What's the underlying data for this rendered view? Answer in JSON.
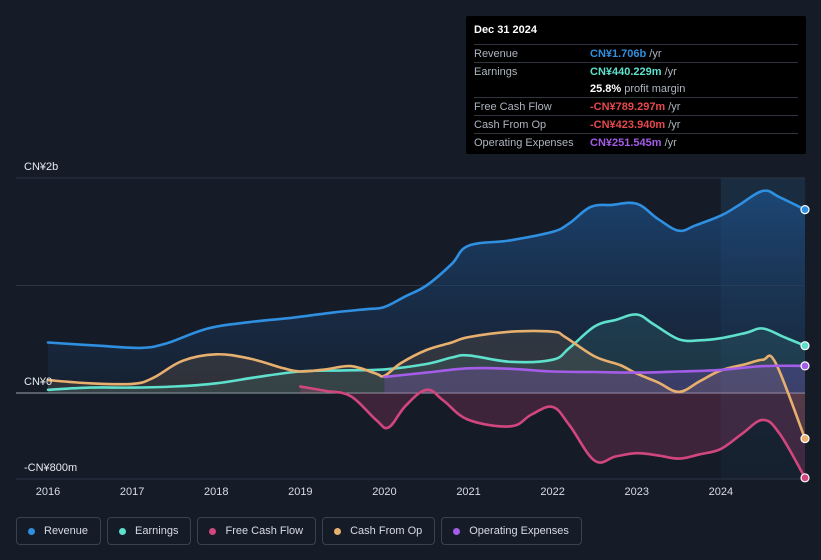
{
  "tooltip": {
    "date": "Dec 31 2024",
    "rows": [
      {
        "label": "Revenue",
        "value": "CN¥1.706b",
        "unit": "/yr",
        "color": "#2f8fe0"
      },
      {
        "label": "Earnings",
        "value": "CN¥440.229m",
        "unit": "/yr",
        "color": "#5ee0cc"
      },
      {
        "label": "",
        "value": "25.8%",
        "unit": "profit margin",
        "color": "#ffffff"
      },
      {
        "label": "Free Cash Flow",
        "value": "-CN¥789.297m",
        "unit": "/yr",
        "color": "#e5484d"
      },
      {
        "label": "Cash From Op",
        "value": "-CN¥423.940m",
        "unit": "/yr",
        "color": "#e5484d"
      },
      {
        "label": "Operating Expenses",
        "value": "CN¥251.545m",
        "unit": "/yr",
        "color": "#a45de8"
      }
    ]
  },
  "chart_data": {
    "type": "area",
    "ylim": [
      -800,
      2000
    ],
    "y_unit": "CN¥ millions",
    "y_tick_labels": [
      {
        "value": 2000,
        "label": "CN¥2b"
      },
      {
        "value": 0,
        "label": "CN¥0"
      },
      {
        "value": -800,
        "label": "-CN¥800m"
      }
    ],
    "x_ticks": [
      "2016",
      "2017",
      "2018",
      "2019",
      "2020",
      "2021",
      "2022",
      "2023",
      "2024"
    ],
    "xlim": [
      2015.5,
      2025.0
    ],
    "highlight_from": 2024.0,
    "series": [
      {
        "name": "Revenue",
        "color": "#2f8fe0",
        "fill": true,
        "points": [
          [
            2016.0,
            470
          ],
          [
            2016.6,
            440
          ],
          [
            2017.1,
            420
          ],
          [
            2017.4,
            460
          ],
          [
            2017.9,
            600
          ],
          [
            2018.4,
            660
          ],
          [
            2018.9,
            700
          ],
          [
            2019.4,
            750
          ],
          [
            2019.8,
            780
          ],
          [
            2020.0,
            800
          ],
          [
            2020.25,
            900
          ],
          [
            2020.5,
            1000
          ],
          [
            2020.8,
            1200
          ],
          [
            2021.0,
            1370
          ],
          [
            2021.5,
            1420
          ],
          [
            2022.0,
            1500
          ],
          [
            2022.2,
            1580
          ],
          [
            2022.45,
            1730
          ],
          [
            2022.7,
            1750
          ],
          [
            2023.0,
            1760
          ],
          [
            2023.25,
            1620
          ],
          [
            2023.5,
            1510
          ],
          [
            2023.7,
            1560
          ],
          [
            2024.0,
            1650
          ],
          [
            2024.2,
            1740
          ],
          [
            2024.5,
            1880
          ],
          [
            2024.7,
            1820
          ],
          [
            2025.0,
            1706
          ]
        ]
      },
      {
        "name": "Earnings",
        "color": "#5ee0cc",
        "fill": true,
        "points": [
          [
            2016.0,
            30
          ],
          [
            2016.5,
            50
          ],
          [
            2017.0,
            50
          ],
          [
            2017.5,
            60
          ],
          [
            2018.0,
            90
          ],
          [
            2018.5,
            150
          ],
          [
            2019.0,
            200
          ],
          [
            2019.5,
            210
          ],
          [
            2020.0,
            220
          ],
          [
            2020.5,
            270
          ],
          [
            2020.8,
            330
          ],
          [
            2021.0,
            350
          ],
          [
            2021.5,
            290
          ],
          [
            2022.0,
            310
          ],
          [
            2022.2,
            420
          ],
          [
            2022.5,
            620
          ],
          [
            2022.75,
            680
          ],
          [
            2023.0,
            730
          ],
          [
            2023.2,
            640
          ],
          [
            2023.5,
            500
          ],
          [
            2023.75,
            490
          ],
          [
            2024.0,
            510
          ],
          [
            2024.3,
            560
          ],
          [
            2024.5,
            600
          ],
          [
            2024.75,
            520
          ],
          [
            2025.0,
            440
          ]
        ]
      },
      {
        "name": "Free Cash Flow",
        "color": "#d2467e",
        "fill": true,
        "points": [
          [
            2019.0,
            60
          ],
          [
            2019.3,
            20
          ],
          [
            2019.6,
            -30
          ],
          [
            2019.9,
            -250
          ],
          [
            2020.05,
            -320
          ],
          [
            2020.25,
            -120
          ],
          [
            2020.5,
            30
          ],
          [
            2020.7,
            -70
          ],
          [
            2021.0,
            -250
          ],
          [
            2021.5,
            -310
          ],
          [
            2021.75,
            -200
          ],
          [
            2022.0,
            -130
          ],
          [
            2022.2,
            -300
          ],
          [
            2022.5,
            -630
          ],
          [
            2022.75,
            -590
          ],
          [
            2023.0,
            -560
          ],
          [
            2023.25,
            -580
          ],
          [
            2023.5,
            -610
          ],
          [
            2023.75,
            -570
          ],
          [
            2024.0,
            -520
          ],
          [
            2024.25,
            -380
          ],
          [
            2024.5,
            -250
          ],
          [
            2024.7,
            -380
          ],
          [
            2025.0,
            -789
          ]
        ]
      },
      {
        "name": "Cash From Op",
        "color": "#e8b06e",
        "fill": true,
        "points": [
          [
            2016.0,
            120
          ],
          [
            2016.5,
            90
          ],
          [
            2017.0,
            85
          ],
          [
            2017.25,
            140
          ],
          [
            2017.6,
            300
          ],
          [
            2018.0,
            360
          ],
          [
            2018.4,
            320
          ],
          [
            2018.8,
            230
          ],
          [
            2019.0,
            200
          ],
          [
            2019.3,
            220
          ],
          [
            2019.6,
            250
          ],
          [
            2019.9,
            180
          ],
          [
            2020.0,
            160
          ],
          [
            2020.2,
            280
          ],
          [
            2020.5,
            400
          ],
          [
            2020.8,
            470
          ],
          [
            2021.0,
            520
          ],
          [
            2021.5,
            570
          ],
          [
            2022.0,
            570
          ],
          [
            2022.15,
            520
          ],
          [
            2022.5,
            340
          ],
          [
            2022.8,
            260
          ],
          [
            2023.0,
            180
          ],
          [
            2023.25,
            100
          ],
          [
            2023.5,
            10
          ],
          [
            2023.75,
            110
          ],
          [
            2024.0,
            210
          ],
          [
            2024.3,
            270
          ],
          [
            2024.5,
            310
          ],
          [
            2024.65,
            280
          ],
          [
            2025.0,
            -424
          ]
        ]
      },
      {
        "name": "Operating Expenses",
        "color": "#a45de8",
        "fill": true,
        "points": [
          [
            2020.0,
            150
          ],
          [
            2020.5,
            190
          ],
          [
            2021.0,
            230
          ],
          [
            2021.5,
            225
          ],
          [
            2022.0,
            200
          ],
          [
            2022.5,
            195
          ],
          [
            2023.0,
            190
          ],
          [
            2023.5,
            200
          ],
          [
            2024.0,
            215
          ],
          [
            2024.5,
            250
          ],
          [
            2025.0,
            252
          ]
        ]
      }
    ]
  },
  "legend": {
    "items": [
      {
        "label": "Revenue",
        "color": "#2f8fe0"
      },
      {
        "label": "Earnings",
        "color": "#5ee0cc"
      },
      {
        "label": "Free Cash Flow",
        "color": "#d2467e"
      },
      {
        "label": "Cash From Op",
        "color": "#e8b06e"
      },
      {
        "label": "Operating Expenses",
        "color": "#a45de8"
      }
    ]
  }
}
